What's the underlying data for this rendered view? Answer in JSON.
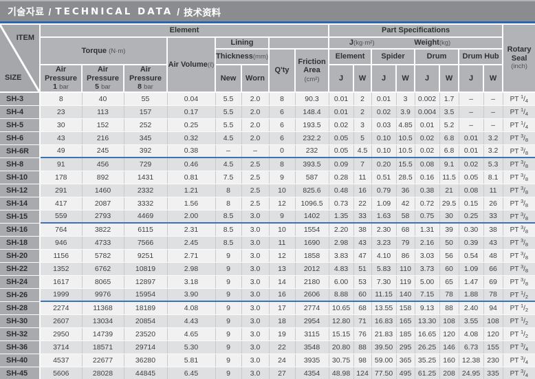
{
  "title": {
    "korean": "기술자료",
    "english": "TECHNICAL DATA",
    "chinese": "技术资料",
    "separator": "/"
  },
  "colors": {
    "accent_blue": "#2767b1",
    "separator_blue": "#3a72b5",
    "title_bar_gray": "#8a8c8f",
    "header_gray": "#b1b3b6",
    "size_column_gray": "#a8aaad",
    "row_light": "#f1f1f2",
    "row_dark": "#dfe0e2"
  },
  "header": {
    "item": "ITEM",
    "size": "SIZE",
    "element_group": "Element",
    "part_specifications": "Part Specifications",
    "torque": "Torque",
    "torque_unit": "(N·m)",
    "air_pressure": "Air Pressure",
    "ap_values": [
      {
        "num": "1",
        "unit": "bar"
      },
      {
        "num": "5",
        "unit": "bar"
      },
      {
        "num": "8",
        "unit": "bar"
      }
    ],
    "air_volume": "Air Volume",
    "air_volume_unit": "(ℓ)",
    "lining": "Lining",
    "thickness": "Thickness",
    "thickness_unit": "(mm)",
    "new": "New",
    "worn": "Worn",
    "qty": "Q'ty",
    "friction_line1": "Friction",
    "friction_line2": "Area",
    "friction_unit": "(cm²)",
    "j_label": "J",
    "j_unit": "(kg·m²)",
    "weight_label": "Weight",
    "weight_unit": "(kg)",
    "parts": [
      "Element",
      "Spider",
      "Drum",
      "Drum Hub"
    ],
    "jw": [
      "J",
      "W"
    ],
    "rotary_line1": "Rotary",
    "rotary_line2": "Seal",
    "rotary_unit": "(inch)"
  },
  "table": {
    "rows": [
      {
        "size": "SH-3",
        "values": [
          "8",
          "40",
          "55",
          "0.04",
          "5.5",
          "2.0",
          "8",
          "90.3",
          "0.01",
          "2",
          "0.01",
          "3",
          "0.002",
          "1.7",
          "–",
          "–"
        ],
        "rotary": {
          "prefix": "PT",
          "num": "1",
          "den": "4"
        },
        "separator_after": false
      },
      {
        "size": "SH-4",
        "values": [
          "23",
          "113",
          "157",
          "0.17",
          "5.5",
          "2.0",
          "6",
          "148.4",
          "0.01",
          "2",
          "0.02",
          "3.9",
          "0.004",
          "3.5",
          "–",
          "–"
        ],
        "rotary": {
          "prefix": "PT",
          "num": "1",
          "den": "4"
        },
        "separator_after": false
      },
      {
        "size": "SH-5",
        "values": [
          "30",
          "152",
          "252",
          "0.25",
          "5.5",
          "2.0",
          "6",
          "193.5",
          "0.02",
          "3",
          "0.03",
          "4.85",
          "0.01",
          "5.2",
          "–",
          "–"
        ],
        "rotary": {
          "prefix": "PT",
          "num": "1",
          "den": "4"
        },
        "separator_after": false
      },
      {
        "size": "SH-6",
        "values": [
          "43",
          "216",
          "345",
          "0.32",
          "4.5",
          "2.0",
          "6",
          "232.2",
          "0.05",
          "5",
          "0.10",
          "10.5",
          "0.02",
          "6.8",
          "0.01",
          "3.2"
        ],
        "rotary": {
          "prefix": "PT",
          "num": "3",
          "den": "8"
        },
        "separator_after": false
      },
      {
        "size": "SH-6R",
        "values": [
          "49",
          "245",
          "392",
          "0.38",
          "–",
          "–",
          "0",
          "232",
          "0.05",
          "4.5",
          "0.10",
          "10.5",
          "0.02",
          "6.8",
          "0.01",
          "3.2"
        ],
        "rotary": {
          "prefix": "PT",
          "num": "3",
          "den": "8"
        },
        "separator_after": true
      },
      {
        "size": "SH-8",
        "values": [
          "91",
          "456",
          "729",
          "0.46",
          "4.5",
          "2.5",
          "8",
          "393.5",
          "0.09",
          "7",
          "0.20",
          "15.5",
          "0.08",
          "9.1",
          "0.02",
          "5.3"
        ],
        "rotary": {
          "prefix": "PT",
          "num": "3",
          "den": "8"
        },
        "separator_after": false
      },
      {
        "size": "SH-10",
        "values": [
          "178",
          "892",
          "1431",
          "0.81",
          "7.5",
          "2.5",
          "9",
          "587",
          "0.28",
          "11",
          "0.51",
          "28.5",
          "0.16",
          "11.5",
          "0.05",
          "8.1"
        ],
        "rotary": {
          "prefix": "PT",
          "num": "3",
          "den": "8"
        },
        "separator_after": false
      },
      {
        "size": "SH-12",
        "values": [
          "291",
          "1460",
          "2332",
          "1.21",
          "8",
          "2.5",
          "10",
          "825.6",
          "0.48",
          "16",
          "0.79",
          "36",
          "0.38",
          "21",
          "0.08",
          "11"
        ],
        "rotary": {
          "prefix": "PT",
          "num": "3",
          "den": "8"
        },
        "separator_after": false
      },
      {
        "size": "SH-14",
        "values": [
          "417",
          "2087",
          "3332",
          "1.56",
          "8",
          "2.5",
          "12",
          "1096.5",
          "0.73",
          "22",
          "1.09",
          "42",
          "0.72",
          "29.5",
          "0.15",
          "26"
        ],
        "rotary": {
          "prefix": "PT",
          "num": "3",
          "den": "8"
        },
        "separator_after": false
      },
      {
        "size": "SH-15",
        "values": [
          "559",
          "2793",
          "4469",
          "2.00",
          "8.5",
          "3.0",
          "9",
          "1402",
          "1.35",
          "33",
          "1.63",
          "58",
          "0.75",
          "30",
          "0.25",
          "33"
        ],
        "rotary": {
          "prefix": "PT",
          "num": "3",
          "den": "8"
        },
        "separator_after": true
      },
      {
        "size": "SH-16",
        "values": [
          "764",
          "3822",
          "6115",
          "2.31",
          "8.5",
          "3.0",
          "10",
          "1554",
          "2.20",
          "38",
          "2.30",
          "68",
          "1.31",
          "39",
          "0.30",
          "38"
        ],
        "rotary": {
          "prefix": "PT",
          "num": "3",
          "den": "8"
        },
        "separator_after": false
      },
      {
        "size": "SH-18",
        "values": [
          "946",
          "4733",
          "7566",
          "2.45",
          "8.5",
          "3.0",
          "11",
          "1690",
          "2.98",
          "43",
          "3.23",
          "79",
          "2.16",
          "50",
          "0.39",
          "43"
        ],
        "rotary": {
          "prefix": "PT",
          "num": "3",
          "den": "8"
        },
        "separator_after": false
      },
      {
        "size": "SH-20",
        "values": [
          "1156",
          "5782",
          "9251",
          "2.71",
          "9",
          "3.0",
          "12",
          "1858",
          "3.83",
          "47",
          "4.10",
          "86",
          "3.03",
          "56",
          "0.54",
          "48"
        ],
        "rotary": {
          "prefix": "PT",
          "num": "3",
          "den": "8"
        },
        "separator_after": false
      },
      {
        "size": "SH-22",
        "values": [
          "1352",
          "6762",
          "10819",
          "2.98",
          "9",
          "3.0",
          "13",
          "2012",
          "4.83",
          "51",
          "5.83",
          "110",
          "3.73",
          "60",
          "1.09",
          "66"
        ],
        "rotary": {
          "prefix": "PT",
          "num": "3",
          "den": "8"
        },
        "separator_after": false
      },
      {
        "size": "SH-24",
        "values": [
          "1617",
          "8065",
          "12897",
          "3.18",
          "9",
          "3.0",
          "14",
          "2180",
          "6.00",
          "53",
          "7.30",
          "119",
          "5.00",
          "65",
          "1.47",
          "69"
        ],
        "rotary": {
          "prefix": "PT",
          "num": "3",
          "den": "8"
        },
        "separator_after": false
      },
      {
        "size": "SH-26",
        "values": [
          "1999",
          "9976",
          "15954",
          "3.90",
          "9",
          "3.0",
          "16",
          "2606",
          "8.88",
          "60",
          "11.15",
          "140",
          "7.15",
          "78",
          "1.88",
          "78"
        ],
        "rotary": {
          "prefix": "PT",
          "num": "1",
          "den": "2"
        },
        "separator_after": true
      },
      {
        "size": "SH-28",
        "values": [
          "2274",
          "11368",
          "18189",
          "4.08",
          "9",
          "3.0",
          "17",
          "2774",
          "10.65",
          "68",
          "13.55",
          "158",
          "9.13",
          "88",
          "2.40",
          "94"
        ],
        "rotary": {
          "prefix": "PT",
          "num": "1",
          "den": "2"
        },
        "separator_after": false
      },
      {
        "size": "SH-30",
        "values": [
          "2607",
          "13034",
          "20854",
          "4.43",
          "9",
          "3.0",
          "18",
          "2954",
          "12.80",
          "71",
          "16.83",
          "165",
          "13.30",
          "108",
          "3.55",
          "108"
        ],
        "rotary": {
          "prefix": "PT",
          "num": "1",
          "den": "2"
        },
        "separator_after": false
      },
      {
        "size": "SH-32",
        "values": [
          "2950",
          "14739",
          "23520",
          "4.65",
          "9",
          "3.0",
          "19",
          "3115",
          "15.15",
          "76",
          "21.83",
          "185",
          "16.65",
          "120",
          "4.08",
          "120"
        ],
        "rotary": {
          "prefix": "PT",
          "num": "1",
          "den": "2"
        },
        "separator_after": false
      },
      {
        "size": "SH-36",
        "values": [
          "3714",
          "18571",
          "29714",
          "5.30",
          "9",
          "3.0",
          "22",
          "3548",
          "20.80",
          "88",
          "39.50",
          "295",
          "26.25",
          "146",
          "6.73",
          "155"
        ],
        "rotary": {
          "prefix": "PT",
          "num": "3",
          "den": "4"
        },
        "separator_after": false
      },
      {
        "size": "SH-40",
        "values": [
          "4537",
          "22677",
          "36280",
          "5.81",
          "9",
          "3.0",
          "24",
          "3935",
          "30.75",
          "98",
          "59.00",
          "365",
          "35.25",
          "160",
          "12.38",
          "230"
        ],
        "rotary": {
          "prefix": "PT",
          "num": "3",
          "den": "4"
        },
        "separator_after": false
      },
      {
        "size": "SH-45",
        "values": [
          "5606",
          "28028",
          "44845",
          "6.45",
          "9",
          "3.0",
          "27",
          "4354",
          "48.98",
          "124",
          "77.50",
          "495",
          "61.25",
          "208",
          "24.95",
          "335"
        ],
        "rotary": {
          "prefix": "PT",
          "num": "3",
          "den": "4"
        },
        "separator_after": false
      }
    ]
  }
}
